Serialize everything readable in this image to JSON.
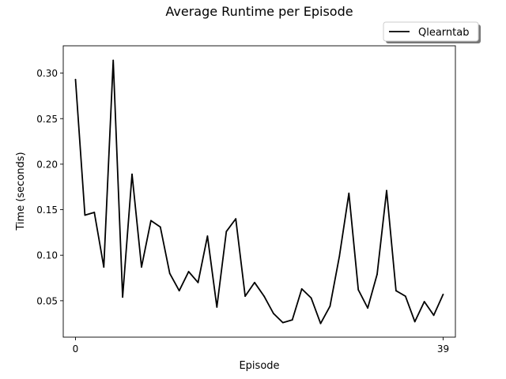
{
  "chart_data": {
    "type": "line",
    "title": "Average Runtime per Episode",
    "xlabel": "Episode",
    "ylabel": "Time (seconds)",
    "xlim": [
      -1.3,
      40.3
    ],
    "ylim": [
      0.01,
      0.33
    ],
    "xticks": [
      0,
      39
    ],
    "yticks": [
      0.05,
      0.1,
      0.15,
      0.2,
      0.25,
      0.3
    ],
    "ytick_labels": [
      "0.05",
      "0.10",
      "0.15",
      "0.20",
      "0.25",
      "0.30"
    ],
    "legend_position": "top-right, above plot",
    "grid": false,
    "series": [
      {
        "name": "Qlearntab",
        "color": "#000000",
        "x": [
          0,
          1,
          2,
          3,
          4,
          5,
          6,
          7,
          8,
          9,
          10,
          11,
          12,
          13,
          14,
          15,
          16,
          17,
          18,
          19,
          20,
          21,
          22,
          23,
          24,
          25,
          26,
          27,
          28,
          29,
          30,
          31,
          32,
          33,
          34,
          35,
          36,
          37,
          38,
          39
        ],
        "y": [
          0.293,
          0.144,
          0.147,
          0.087,
          0.314,
          0.054,
          0.189,
          0.087,
          0.138,
          0.131,
          0.08,
          0.061,
          0.082,
          0.07,
          0.121,
          0.043,
          0.126,
          0.14,
          0.055,
          0.07,
          0.055,
          0.036,
          0.026,
          0.029,
          0.063,
          0.053,
          0.025,
          0.044,
          0.099,
          0.168,
          0.062,
          0.042,
          0.079,
          0.171,
          0.061,
          0.055,
          0.027,
          0.049,
          0.034,
          0.057
        ]
      }
    ]
  }
}
